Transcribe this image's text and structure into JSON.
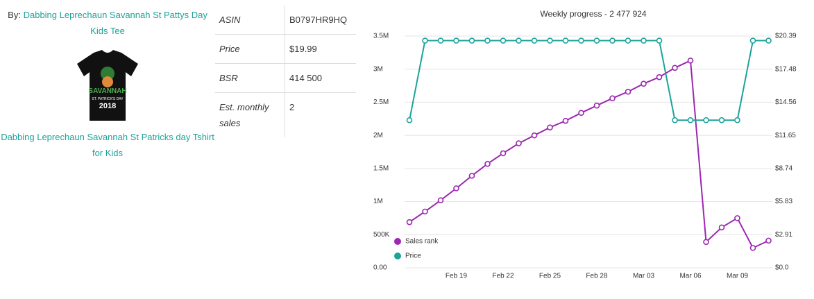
{
  "product": {
    "by_label": "By:",
    "brand_link": "Dabbing Leprechaun Savannah St Pattys Day Kids Tee",
    "image_text": [
      "SAVANNAH",
      "ST. PATRICK'S DAY",
      "2018"
    ],
    "title_link": "Dabbing Leprechaun Savannah St Patricks day Tshirt for Kids"
  },
  "table": {
    "rows": [
      [
        "ASIN",
        "B0797HR9HQ"
      ],
      [
        "Price",
        "$19.99"
      ],
      [
        "BSR",
        "414 500"
      ],
      [
        "Est. monthly sales",
        "2"
      ]
    ]
  },
  "chart_data": {
    "type": "line",
    "title": "Weekly progress - 2 477 924",
    "categories": [
      null,
      null,
      null,
      "Feb 19",
      null,
      null,
      "Feb 22",
      null,
      null,
      "Feb 25",
      null,
      null,
      "Feb 28",
      null,
      null,
      "Mar 03",
      null,
      null,
      "Mar 06",
      null,
      null,
      "Mar 09",
      null,
      null
    ],
    "series": [
      {
        "name": "Sales rank",
        "color": "#9c27b0",
        "values": [
          690000,
          850000,
          1020000,
          1200000,
          1390000,
          1570000,
          1730000,
          1880000,
          2000000,
          2120000,
          2220000,
          2340000,
          2450000,
          2560000,
          2660000,
          2780000,
          2880000,
          3020000,
          3130000,
          390000,
          610000,
          750000,
          300000,
          410000
        ]
      },
      {
        "name": "Price",
        "color": "#1ba39a",
        "axis": "y2",
        "values": [
          12.99,
          19.99,
          19.99,
          19.99,
          19.99,
          19.99,
          19.99,
          19.99,
          19.99,
          19.99,
          19.99,
          19.99,
          19.99,
          19.99,
          19.99,
          19.99,
          19.99,
          12.99,
          12.99,
          12.99,
          12.99,
          12.99,
          19.99,
          19.99
        ]
      }
    ],
    "ylim": [
      0,
      3500000
    ],
    "yticks": [
      {
        "value": 0,
        "label": "0.00"
      },
      {
        "value": 500000,
        "label": "500K"
      },
      {
        "value": 1000000,
        "label": "1M"
      },
      {
        "value": 1500000,
        "label": "1.5M"
      },
      {
        "value": 2000000,
        "label": "2M"
      },
      {
        "value": 2500000,
        "label": "2.5M"
      },
      {
        "value": 3000000,
        "label": "3M"
      },
      {
        "value": 3500000,
        "label": "3.5M"
      }
    ],
    "y2lim": [
      0,
      20.39
    ],
    "y2ticks": [
      {
        "value": 0,
        "label": "$0.0"
      },
      {
        "value": 2.91,
        "label": "$2.91"
      },
      {
        "value": 5.83,
        "label": "$5.83"
      },
      {
        "value": 8.74,
        "label": "$8.74"
      },
      {
        "value": 11.65,
        "label": "$11.65"
      },
      {
        "value": 14.56,
        "label": "$14.56"
      },
      {
        "value": 17.48,
        "label": "$17.48"
      },
      {
        "value": 20.39,
        "label": "$20.39"
      }
    ],
    "grid": true,
    "legend": "lower left"
  }
}
